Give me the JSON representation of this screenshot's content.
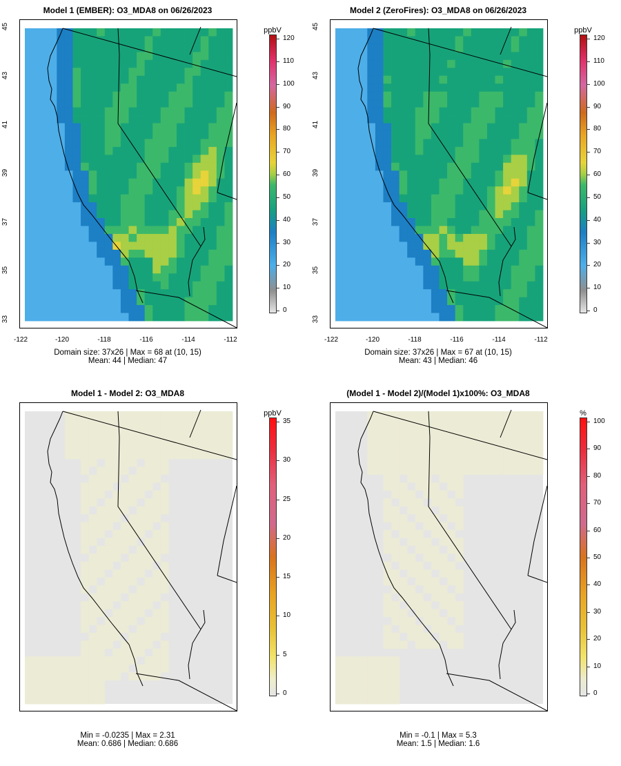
{
  "panels": [
    {
      "title": "Model 1 (EMBER): O3_MDA8 on 06/26/2023",
      "stats_line1": "Domain size: 37x26 | Max = 68 at (10, 15)",
      "stats_line2": "Mean: 44 |  Median: 47",
      "unit": "ppbV",
      "colorbar_ticks": [
        "120",
        "110",
        "100",
        "90",
        "80",
        "70",
        "60",
        "50",
        "40",
        "30",
        "20",
        "10",
        "0"
      ],
      "y_ticks": [
        "45",
        "43",
        "41",
        "39",
        "37",
        "35",
        "33"
      ],
      "x_ticks": [
        "-122",
        "-120",
        "-118",
        "-116",
        "-114",
        "-112"
      ]
    },
    {
      "title": "Model 2 (ZeroFires): O3_MDA8 on 06/26/2023",
      "stats_line1": "Domain size: 37x26 | Max = 67 at (10, 15)",
      "stats_line2": "Mean: 43 |  Median: 46",
      "unit": "ppbV",
      "colorbar_ticks": [
        "120",
        "110",
        "100",
        "90",
        "80",
        "70",
        "60",
        "50",
        "40",
        "30",
        "20",
        "10",
        "0"
      ],
      "y_ticks": [
        "45",
        "43",
        "41",
        "39",
        "37",
        "35",
        "33"
      ],
      "x_ticks": [
        "-122",
        "-120",
        "-118",
        "-116",
        "-114",
        "-112"
      ]
    },
    {
      "title": "Model 1 - Model 2: O3_MDA8",
      "stats_line1": "Min = -0.0235 | Max = 2.31",
      "stats_line2": "Mean: 0.686 |  Median: 0.686",
      "unit": "ppbV",
      "colorbar_ticks": [
        "35",
        "30",
        "25",
        "20",
        "15",
        "10",
        "5",
        "0"
      ]
    },
    {
      "title": "(Model 1 - Model 2)/(Model 1)x100%: O3_MDA8",
      "stats_line1": "Min = -0.1 | Max = 5.3",
      "stats_line2": "Mean: 1.5 |  Median: 1.6",
      "unit": "%",
      "colorbar_ticks": [
        "100",
        "90",
        "80",
        "70",
        "60",
        "50",
        "40",
        "30",
        "20",
        "10",
        "0"
      ]
    }
  ],
  "colors": {
    "ocean_blue": "#4eaee8",
    "deep_blue": "#1d7fc4",
    "teal_green": "#17a37a",
    "green": "#3cb86a",
    "yellow_green": "#a8cf45",
    "yellow": "#e7d33a",
    "orange": "#e8a524",
    "diff_gray": "#e5e5e5",
    "diff_beige": "#ecebd6"
  }
}
